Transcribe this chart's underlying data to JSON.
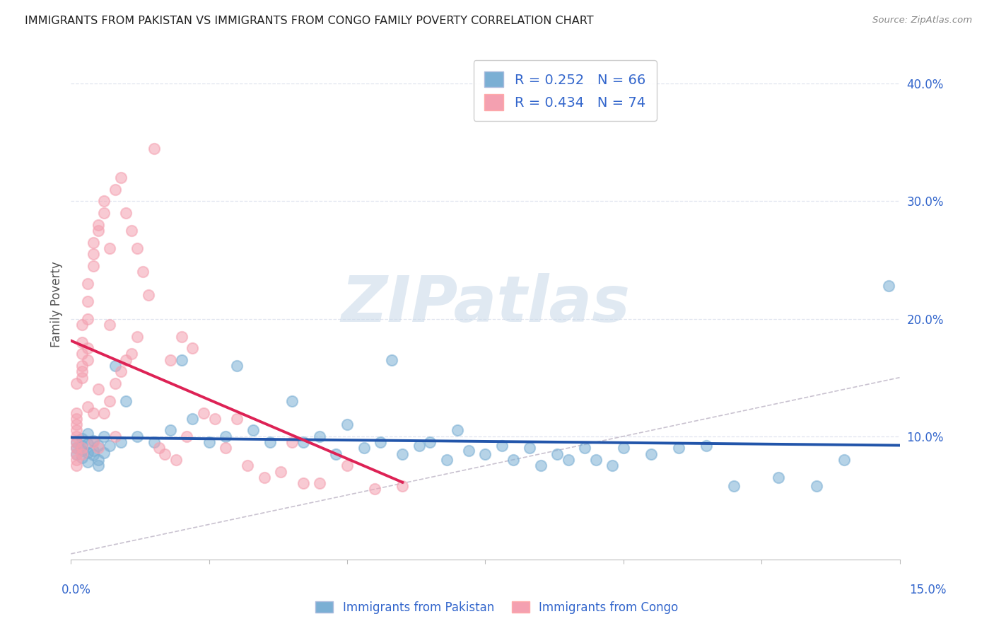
{
  "title": "IMMIGRANTS FROM PAKISTAN VS IMMIGRANTS FROM CONGO FAMILY POVERTY CORRELATION CHART",
  "source": "Source: ZipAtlas.com",
  "ylabel": "Family Poverty",
  "xlim": [
    0.0,
    0.15
  ],
  "ylim": [
    -0.005,
    0.43
  ],
  "yticks_right": [
    0.1,
    0.2,
    0.3,
    0.4
  ],
  "ytick_labels_right": [
    "10.0%",
    "20.0%",
    "30.0%",
    "40.0%"
  ],
  "xtick_left_label": "0.0%",
  "xtick_right_label": "15.0%",
  "pakistan_R": 0.252,
  "pakistan_N": 66,
  "congo_R": 0.434,
  "congo_N": 74,
  "pakistan_color": "#7BAFD4",
  "congo_color": "#F4A0B0",
  "pakistan_line_color": "#2255AA",
  "congo_line_color": "#DD2255",
  "accent_color": "#3366CC",
  "grid_color": "#E0E4EF",
  "diag_color": "#C0B8C8",
  "watermark_color": "#C8D8E8",
  "watermark_text": "ZIPatlas",
  "background_color": "#FFFFFF",
  "pakistan_x": [
    0.001,
    0.001,
    0.001,
    0.002,
    0.002,
    0.002,
    0.002,
    0.003,
    0.003,
    0.003,
    0.003,
    0.004,
    0.004,
    0.004,
    0.005,
    0.005,
    0.005,
    0.006,
    0.006,
    0.007,
    0.008,
    0.009,
    0.01,
    0.012,
    0.015,
    0.018,
    0.02,
    0.022,
    0.025,
    0.028,
    0.03,
    0.033,
    0.036,
    0.04,
    0.042,
    0.045,
    0.048,
    0.05,
    0.053,
    0.056,
    0.058,
    0.06,
    0.063,
    0.065,
    0.068,
    0.07,
    0.072,
    0.075,
    0.078,
    0.08,
    0.083,
    0.085,
    0.088,
    0.09,
    0.093,
    0.095,
    0.098,
    0.1,
    0.105,
    0.11,
    0.115,
    0.12,
    0.128,
    0.135,
    0.14,
    0.148
  ],
  "pakistan_y": [
    0.09,
    0.085,
    0.095,
    0.088,
    0.092,
    0.082,
    0.098,
    0.086,
    0.094,
    0.078,
    0.102,
    0.084,
    0.096,
    0.088,
    0.08,
    0.092,
    0.075,
    0.086,
    0.1,
    0.092,
    0.16,
    0.095,
    0.13,
    0.1,
    0.095,
    0.105,
    0.165,
    0.115,
    0.095,
    0.1,
    0.16,
    0.105,
    0.095,
    0.13,
    0.095,
    0.1,
    0.085,
    0.11,
    0.09,
    0.095,
    0.165,
    0.085,
    0.092,
    0.095,
    0.08,
    0.105,
    0.088,
    0.085,
    0.092,
    0.08,
    0.09,
    0.075,
    0.085,
    0.08,
    0.09,
    0.08,
    0.075,
    0.09,
    0.085,
    0.09,
    0.092,
    0.058,
    0.065,
    0.058,
    0.08,
    0.228
  ],
  "congo_x": [
    0.001,
    0.001,
    0.001,
    0.001,
    0.001,
    0.001,
    0.001,
    0.001,
    0.001,
    0.001,
    0.001,
    0.002,
    0.002,
    0.002,
    0.002,
    0.002,
    0.002,
    0.002,
    0.002,
    0.003,
    0.003,
    0.003,
    0.003,
    0.003,
    0.003,
    0.004,
    0.004,
    0.004,
    0.004,
    0.004,
    0.005,
    0.005,
    0.005,
    0.005,
    0.006,
    0.006,
    0.006,
    0.007,
    0.007,
    0.007,
    0.008,
    0.008,
    0.008,
    0.009,
    0.009,
    0.01,
    0.01,
    0.011,
    0.011,
    0.012,
    0.012,
    0.013,
    0.014,
    0.015,
    0.016,
    0.017,
    0.018,
    0.019,
    0.02,
    0.021,
    0.022,
    0.024,
    0.026,
    0.028,
    0.03,
    0.032,
    0.035,
    0.038,
    0.04,
    0.042,
    0.045,
    0.05,
    0.055,
    0.06
  ],
  "congo_y": [
    0.085,
    0.09,
    0.095,
    0.1,
    0.105,
    0.11,
    0.115,
    0.12,
    0.08,
    0.075,
    0.145,
    0.15,
    0.155,
    0.16,
    0.17,
    0.18,
    0.195,
    0.09,
    0.085,
    0.165,
    0.175,
    0.2,
    0.215,
    0.23,
    0.125,
    0.245,
    0.255,
    0.265,
    0.12,
    0.095,
    0.275,
    0.28,
    0.14,
    0.09,
    0.29,
    0.3,
    0.12,
    0.26,
    0.195,
    0.13,
    0.31,
    0.145,
    0.1,
    0.32,
    0.155,
    0.29,
    0.165,
    0.275,
    0.17,
    0.26,
    0.185,
    0.24,
    0.22,
    0.345,
    0.09,
    0.085,
    0.165,
    0.08,
    0.185,
    0.1,
    0.175,
    0.12,
    0.115,
    0.09,
    0.115,
    0.075,
    0.065,
    0.07,
    0.095,
    0.06,
    0.06,
    0.075,
    0.055,
    0.058
  ]
}
